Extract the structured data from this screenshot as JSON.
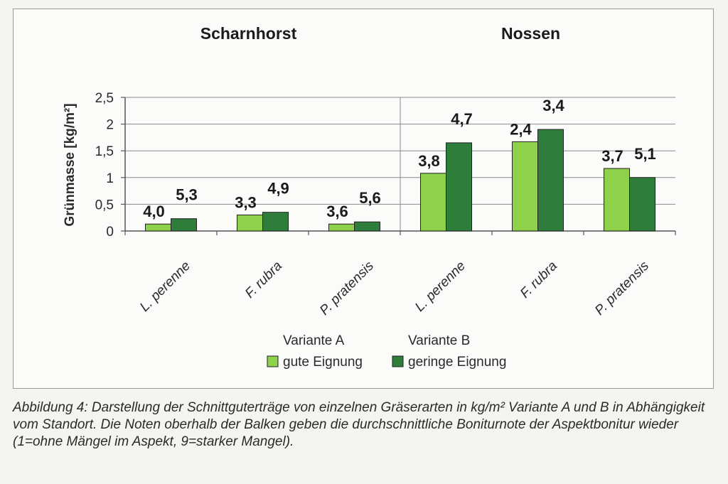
{
  "chart_data": {
    "type": "bar",
    "group_titles": [
      "Scharnhorst",
      "Nossen"
    ],
    "categories": [
      "L. perenne",
      "F. rubra",
      "P. pratensis",
      "L. perenne",
      "F. rubra",
      "P. pratensis"
    ],
    "ylabel": "Grünmasse [kg/m²]",
    "ylim": [
      0,
      2.5
    ],
    "yticks": [
      "0",
      "0,5",
      "1",
      "1,5",
      "2",
      "2,5"
    ],
    "ytick_values": [
      0,
      0.5,
      1,
      1.5,
      2,
      2.5
    ],
    "grid": true,
    "series": [
      {
        "legend_top": "Variante A",
        "legend_bottom": "gute Eignung",
        "color": "#8fd14a",
        "values": [
          0.13,
          0.3,
          0.13,
          1.08,
          1.67,
          1.17
        ],
        "labels": [
          "4,0",
          "3,3",
          "3,6",
          "3,8",
          "2,4",
          "3,7"
        ]
      },
      {
        "legend_top": "Variante B",
        "legend_bottom": "geringe Eignung",
        "color": "#2e7d3a",
        "values": [
          0.23,
          0.35,
          0.17,
          1.65,
          1.9,
          1.0
        ],
        "labels": [
          "5,3",
          "4,9",
          "5,6",
          "4,7",
          "3,4",
          "5,1"
        ]
      }
    ]
  },
  "caption": "Abbildung 4: Darstellung der Schnittguterträge von einzelnen Gräserarten in kg/m² Variante A und B in Abhängigkeit vom Standort. Die Noten oberhalb der Balken geben die durchschnittliche Boniturnote der Aspektbonitur wieder (1=ohne Mängel im Aspekt, 9=starker Mangel)."
}
